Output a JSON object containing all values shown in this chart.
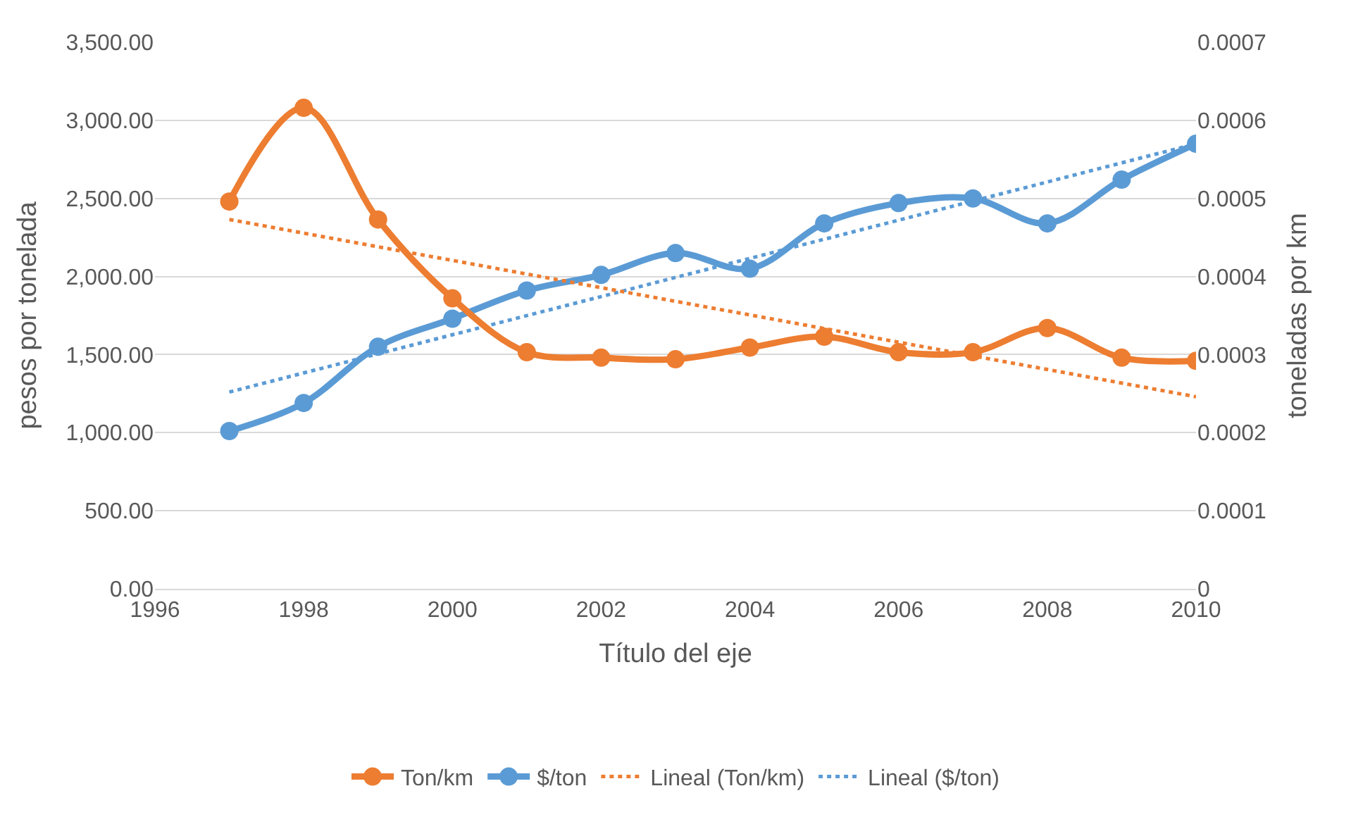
{
  "chart_data": {
    "type": "line",
    "xlabel": "Título del eje",
    "ylabel": "pesos por tonelada",
    "y2label": "toneladas por km",
    "x": [
      1997,
      1998,
      1999,
      2000,
      2001,
      2002,
      2003,
      2004,
      2005,
      2006,
      2007,
      2008,
      2009,
      2010
    ],
    "series": [
      {
        "name": "Ton/km",
        "color": "#ed7d31",
        "axis": "y2",
        "marker": "circle",
        "line_style": "solid",
        "values": [
          0.000496,
          0.000616,
          0.000473,
          0.000372,
          0.000303,
          0.000296,
          0.000294,
          0.000309,
          0.000323,
          0.000303,
          0.000303,
          0.000334,
          0.000296,
          0.000292
        ]
      },
      {
        "name": "$/ton",
        "color": "#5b9bd5",
        "axis": "y",
        "marker": "circle",
        "line_style": "solid",
        "values": [
          1010,
          1190,
          1550,
          1730,
          1910,
          2010,
          2150,
          2050,
          2340,
          2470,
          2500,
          2340,
          2620,
          2850
        ]
      },
      {
        "name": "Lineal (Ton/km)",
        "color": "#ed7d31",
        "axis": "y2",
        "marker": "none",
        "line_style": "dotted",
        "values": [
          0.000473,
          null,
          null,
          null,
          null,
          null,
          null,
          null,
          null,
          null,
          null,
          null,
          null,
          0.000246
        ]
      },
      {
        "name": "Lineal ($/ton)",
        "color": "#5b9bd5",
        "axis": "y",
        "marker": "none",
        "line_style": "dotted",
        "values": [
          1260,
          null,
          null,
          null,
          null,
          null,
          null,
          null,
          null,
          null,
          null,
          null,
          null,
          2850
        ]
      }
    ],
    "xlim": [
      1996,
      2010
    ],
    "xticks": [
      1996,
      1998,
      2000,
      2002,
      2004,
      2006,
      2008,
      2010
    ],
    "ylim": [
      0,
      3500
    ],
    "yticks": [
      {
        "value": 0,
        "label": "0.00"
      },
      {
        "value": 500,
        "label": "500.00"
      },
      {
        "value": 1000,
        "label": "1,000.00"
      },
      {
        "value": 1500,
        "label": "1,500.00"
      },
      {
        "value": 2000,
        "label": "2,000.00"
      },
      {
        "value": 2500,
        "label": "2,500.00"
      },
      {
        "value": 3000,
        "label": "3,000.00"
      },
      {
        "value": 3500,
        "label": "3,500.00"
      }
    ],
    "y2lim": [
      0,
      0.0007
    ],
    "y2ticks": [
      0,
      0.0001,
      0.0002,
      0.0003,
      0.0004,
      0.0005,
      0.0006,
      0.0007
    ],
    "grid": "y",
    "legend": "bottom"
  }
}
